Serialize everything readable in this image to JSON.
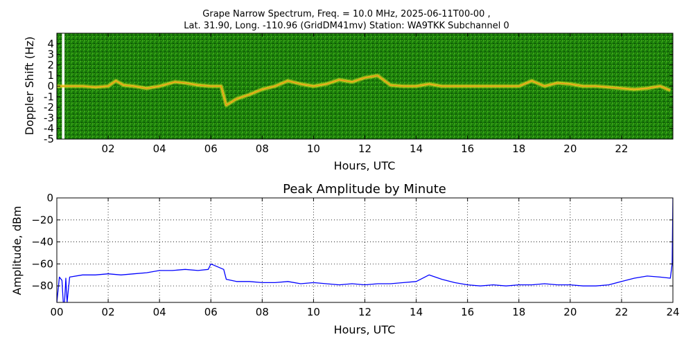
{
  "figure": {
    "title_line1": "Grape Narrow Spectrum, Freq. = 10.0 MHz, 2025-06-11T00-00 ,",
    "title_line2": "Lat.  31.90, Long. -110.96 (GridDM41mv) Station: WA9TKK Subchannel 0"
  },
  "colors": {
    "spectrogram_background": "#1a7a0a",
    "trace_yellow": "#e8e020",
    "trace_red": "#e03010",
    "amplitude_line": "#0000ff"
  },
  "chart_data": [
    {
      "type": "heatmap",
      "title": "",
      "xlabel": "Hours, UTC",
      "ylabel": "Doppler Shift (Hz)",
      "xlim": [
        0,
        24
      ],
      "ylim": [
        -5,
        5
      ],
      "x_ticks": [
        "02",
        "04",
        "06",
        "08",
        "10",
        "12",
        "14",
        "16",
        "18",
        "20",
        "22"
      ],
      "y_ticks": [
        "-5",
        "-4",
        "-3",
        "-2",
        "-1",
        "0",
        "1",
        "2",
        "3",
        "4"
      ],
      "colormap": "green-yellow-red",
      "data_gap_hours": [
        0.2,
        0.3
      ],
      "doppler_trace": {
        "x": [
          0,
          0.5,
          1,
          1.5,
          2,
          2.3,
          2.6,
          3,
          3.5,
          4,
          4.3,
          4.6,
          5,
          5.5,
          6,
          6.4,
          6.6,
          7,
          7.5,
          8,
          8.5,
          9,
          9.5,
          10,
          10.5,
          11,
          11.5,
          12,
          12.5,
          13,
          13.5,
          14,
          14.5,
          15,
          15.5,
          16,
          16.5,
          17,
          17.5,
          18,
          18.5,
          19,
          19.5,
          20,
          20.5,
          21,
          21.5,
          22,
          22.5,
          23,
          23.5,
          23.9
        ],
        "y": [
          0,
          0,
          0,
          -0.1,
          0,
          0.5,
          0.1,
          0,
          -0.2,
          0,
          0.2,
          0.4,
          0.3,
          0.1,
          0,
          0,
          -1.8,
          -1.2,
          -0.8,
          -0.3,
          0,
          0.5,
          0.2,
          0,
          0.2,
          0.6,
          0.4,
          0.8,
          1.0,
          0.1,
          0,
          0,
          0.2,
          0,
          0,
          0,
          0,
          0,
          0,
          0,
          0.5,
          0,
          0.3,
          0.2,
          0,
          0,
          -0.1,
          -0.2,
          -0.3,
          -0.2,
          0,
          -0.4
        ]
      }
    },
    {
      "type": "line",
      "title": "Peak Amplitude by Minute",
      "xlabel": "Hours, UTC",
      "ylabel": "Amplitude, dBm",
      "xlim": [
        0,
        24
      ],
      "ylim": [
        -95,
        0
      ],
      "x_ticks": [
        "00",
        "02",
        "04",
        "06",
        "08",
        "10",
        "12",
        "14",
        "16",
        "18",
        "20",
        "22",
        "24"
      ],
      "y_ticks": [
        "0",
        "−20",
        "−40",
        "−60",
        "−80"
      ],
      "grid": true,
      "series": [
        {
          "name": "",
          "x": [
            0,
            0.1,
            0.2,
            0.25,
            0.3,
            0.35,
            0.4,
            0.5,
            1,
            1.5,
            2,
            2.5,
            3,
            3.5,
            4,
            4.5,
            5,
            5.5,
            5.9,
            6,
            6.5,
            6.6,
            7,
            7.5,
            8,
            8.5,
            9,
            9.5,
            10,
            10.5,
            11,
            11.5,
            12,
            12.5,
            13,
            13.5,
            14,
            14.5,
            15,
            15.5,
            16,
            16.5,
            17,
            17.5,
            18,
            18.5,
            19,
            19.5,
            20,
            20.5,
            21,
            21.5,
            22,
            22.5,
            23,
            23.5,
            23.9,
            23.97,
            24
          ],
          "y": [
            -95,
            -72,
            -75,
            -95,
            -95,
            -73,
            -95,
            -72,
            -70,
            -70,
            -69,
            -70,
            -69,
            -68,
            -66,
            -66,
            -65,
            -66,
            -65,
            -60,
            -65,
            -74,
            -76,
            -76,
            -77,
            -77,
            -76,
            -78,
            -77,
            -78,
            -79,
            -78,
            -79,
            -78,
            -78,
            -77,
            -76,
            -70,
            -74,
            -77,
            -79,
            -80,
            -79,
            -80,
            -79,
            -79,
            -78,
            -79,
            -79,
            -80,
            -80,
            -79,
            -76,
            -73,
            -71,
            -72,
            -73,
            -60,
            0
          ]
        }
      ]
    }
  ]
}
